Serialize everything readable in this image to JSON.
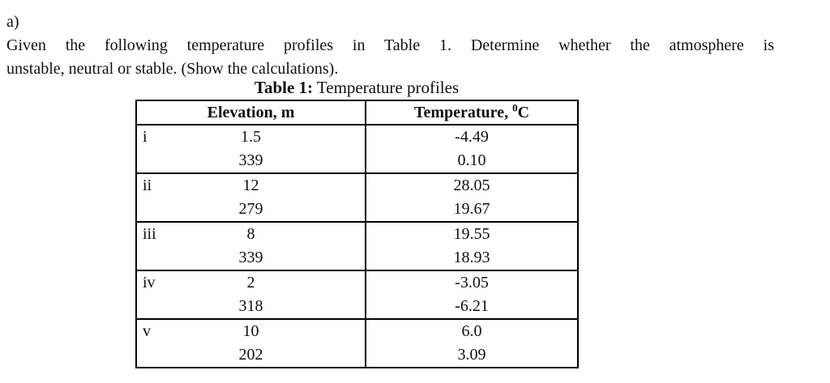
{
  "question": {
    "label": "a)",
    "line1": "Given the following temperature profiles in Table 1. Determine whether the atmosphere is",
    "line2": "unstable, neutral or stable. (Show the calculations)."
  },
  "table": {
    "caption_bold": "Table 1:",
    "caption_rest": " Temperature profiles",
    "col1_header": "Elevation, m",
    "col2_header_prefix": "Temperature, ",
    "col2_header_sup": "0",
    "col2_header_suffix": "C",
    "groups": [
      {
        "label": "i",
        "rows": [
          {
            "elevation": "1.5",
            "temperature": "-4.49"
          },
          {
            "elevation": "339",
            "temperature": "0.10"
          }
        ]
      },
      {
        "label": "ii",
        "rows": [
          {
            "elevation": "12",
            "temperature": "28.05"
          },
          {
            "elevation": "279",
            "temperature": "19.67"
          }
        ]
      },
      {
        "label": "iii",
        "rows": [
          {
            "elevation": "8",
            "temperature": "19.55"
          },
          {
            "elevation": "339",
            "temperature": "18.93"
          }
        ]
      },
      {
        "label": "iv",
        "rows": [
          {
            "elevation": "2",
            "temperature": "-3.05"
          },
          {
            "elevation": "318",
            "temperature": "-6.21"
          }
        ]
      },
      {
        "label": "v",
        "rows": [
          {
            "elevation": "10",
            "temperature": "6.0"
          },
          {
            "elevation": "202",
            "temperature": "3.09"
          }
        ]
      }
    ],
    "text_color": "#111111",
    "border_color": "#000000"
  }
}
